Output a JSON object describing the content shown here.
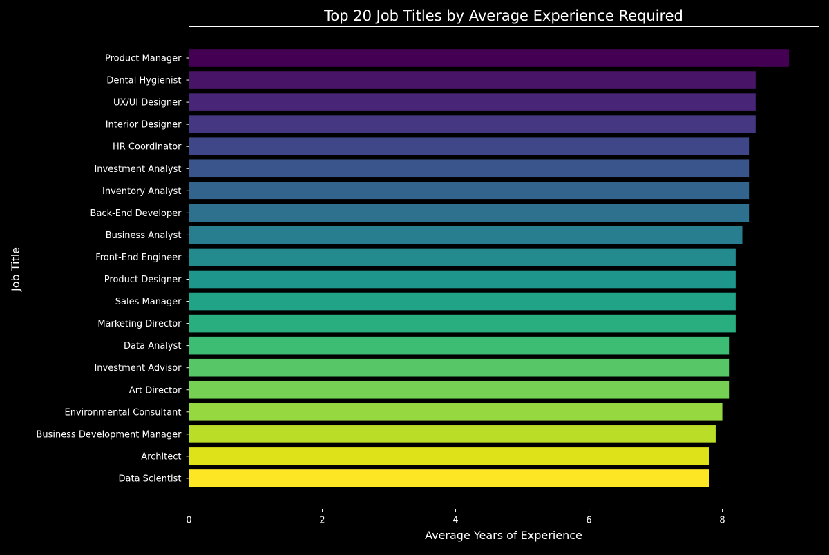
{
  "chart_data": {
    "type": "bar",
    "orientation": "horizontal",
    "title": "Top 20 Job Titles by Average Experience Required",
    "xlabel": "Average Years of Experience",
    "ylabel": "Job Title",
    "xlim": [
      0,
      9.45
    ],
    "xticks": [
      0,
      2,
      4,
      6,
      8
    ],
    "xtick_labels": [
      "0",
      "2",
      "4",
      "6",
      "8"
    ],
    "grid": false,
    "legend": "none",
    "colormap": "viridis",
    "categories": [
      "Product Manager",
      "Dental Hygienist",
      "UX/UI Designer",
      "Interior Designer",
      "HR Coordinator",
      "Investment Analyst",
      "Inventory Analyst",
      "Back-End Developer",
      "Business Analyst",
      "Front-End Engineer",
      "Product Designer",
      "Sales Manager",
      "Marketing Director",
      "Data Analyst",
      "Investment Advisor",
      "Art Director",
      "Environmental Consultant",
      "Business Development Manager",
      "Architect",
      "Data Scientist"
    ],
    "values": [
      9.0,
      8.5,
      8.5,
      8.5,
      8.4,
      8.4,
      8.4,
      8.4,
      8.3,
      8.2,
      8.2,
      8.2,
      8.2,
      8.1,
      8.1,
      8.1,
      8.0,
      7.9,
      7.8,
      7.8
    ],
    "colors": [
      "#440154",
      "#481467",
      "#482576",
      "#453781",
      "#3f4788",
      "#39558c",
      "#32648e",
      "#2d718e",
      "#287d8e",
      "#238a8d",
      "#1f968b",
      "#20a386",
      "#29af7f",
      "#3dbc74",
      "#56c667",
      "#75d054",
      "#95d840",
      "#bade28",
      "#dde318",
      "#fde725"
    ]
  }
}
